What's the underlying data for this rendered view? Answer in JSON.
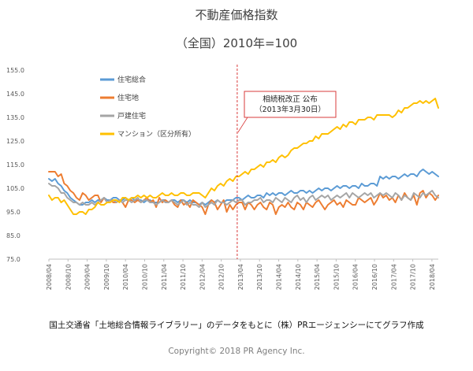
{
  "chart_data": {
    "type": "line",
    "title": "不動産価格指数",
    "subtitle": "（全国）2010年=100",
    "xlabel": "",
    "ylabel": "",
    "ylim": [
      75,
      155
    ],
    "yticks": [
      "155.0",
      "145.0",
      "135.0",
      "125.0",
      "115.0",
      "105.0",
      "95.0",
      "85.0",
      "75.0"
    ],
    "xticks": [
      "2008/04",
      "2008/10",
      "2009/04",
      "2009/10",
      "2010/04",
      "2010/10",
      "2011/04",
      "2011/10",
      "2012/04",
      "2012/10",
      "2013/04",
      "2013/10",
      "2014/04",
      "2014/10",
      "2015/04",
      "2015/10",
      "2016/04",
      "2016/10",
      "2017/04",
      "2017/10",
      "2018/04"
    ],
    "x_start": "2008/04",
    "x_end": "2018/06",
    "legend_position": "top-left",
    "grid": false,
    "series": [
      {
        "name": "住宅総合",
        "color": "#5B9BD5",
        "values": [
          109,
          108,
          109,
          107,
          106,
          104,
          103,
          101,
          100,
          99,
          98,
          98,
          99,
          99,
          100,
          99,
          100,
          100,
          101,
          100,
          100,
          101,
          101,
          100,
          100,
          101,
          100,
          101,
          100,
          100,
          100,
          99,
          100,
          100,
          99,
          99,
          99,
          100,
          100,
          99,
          100,
          100,
          99,
          100,
          100,
          99,
          100,
          99,
          99,
          98,
          99,
          98,
          99,
          100,
          99,
          100,
          99,
          99,
          100,
          100,
          100,
          101,
          101,
          100,
          101,
          102,
          101,
          101,
          102,
          102,
          101,
          103,
          102,
          103,
          102,
          103,
          103,
          102,
          103,
          104,
          103,
          103,
          104,
          104,
          103,
          104,
          103,
          104,
          105,
          104,
          105,
          105,
          104,
          105,
          106,
          105,
          106,
          106,
          105,
          106,
          106,
          105,
          107,
          106,
          106,
          107,
          107,
          106,
          110,
          109,
          110,
          109,
          110,
          110,
          109,
          110,
          111,
          110,
          111,
          111,
          110,
          112,
          113,
          112,
          111,
          112,
          111,
          110
        ]
      },
      {
        "name": "住宅地",
        "color": "#ED7D31",
        "values": [
          112,
          112,
          112,
          110,
          111,
          107,
          106,
          104,
          103,
          101,
          100,
          103,
          102,
          100,
          101,
          102,
          102,
          99,
          101,
          99,
          100,
          99,
          99,
          100,
          99,
          97,
          100,
          100,
          99,
          100,
          99,
          100,
          101,
          99,
          100,
          97,
          101,
          99,
          100,
          99,
          100,
          98,
          97,
          100,
          98,
          99,
          97,
          100,
          99,
          98,
          97,
          94,
          98,
          100,
          99,
          96,
          98,
          100,
          95,
          98,
          96,
          98,
          99,
          99,
          96,
          99,
          98,
          96,
          98,
          99,
          97,
          96,
          99,
          98,
          94,
          97,
          98,
          97,
          99,
          97,
          96,
          99,
          98,
          96,
          99,
          98,
          97,
          99,
          100,
          98,
          96,
          98,
          99,
          100,
          98,
          99,
          97,
          100,
          99,
          98,
          98,
          101,
          100,
          99,
          100,
          101,
          98,
          100,
          103,
          101,
          102,
          100,
          101,
          99,
          102,
          100,
          103,
          101,
          100,
          102,
          98,
          103,
          104,
          101,
          103,
          102,
          100,
          102
        ]
      },
      {
        "name": "戸建住宅",
        "color": "#A5A5A5",
        "values": [
          107,
          106,
          106,
          105,
          103,
          103,
          101,
          100,
          99,
          99,
          98,
          99,
          98,
          98,
          99,
          98,
          99,
          100,
          101,
          99,
          100,
          100,
          99,
          100,
          99,
          100,
          100,
          99,
          100,
          101,
          99,
          100,
          100,
          99,
          99,
          98,
          99,
          100,
          99,
          99,
          100,
          99,
          98,
          99,
          100,
          98,
          99,
          98,
          98,
          97,
          99,
          97,
          98,
          99,
          98,
          100,
          99,
          99,
          98,
          99,
          100,
          99,
          100,
          100,
          98,
          99,
          99,
          100,
          100,
          101,
          99,
          100,
          100,
          99,
          101,
          100,
          99,
          101,
          100,
          99,
          101,
          102,
          100,
          101,
          99,
          101,
          102,
          100,
          101,
          102,
          101,
          102,
          100,
          101,
          102,
          101,
          102,
          103,
          101,
          103,
          102,
          101,
          102,
          103,
          102,
          103,
          101,
          102,
          103,
          102,
          103,
          102,
          101,
          103,
          102,
          100,
          102,
          101,
          100,
          103,
          102,
          101,
          103,
          102,
          103,
          104,
          102,
          101
        ]
      },
      {
        "name": "マンション（区分所有）",
        "color": "#FFC000",
        "values": [
          102,
          100,
          101,
          101,
          99,
          100,
          98,
          96,
          94,
          94,
          95,
          95,
          94,
          96,
          96,
          97,
          99,
          98,
          98,
          99,
          99,
          100,
          100,
          99,
          101,
          101,
          100,
          101,
          101,
          102,
          101,
          102,
          101,
          102,
          101,
          101,
          102,
          103,
          102,
          102,
          103,
          102,
          102,
          103,
          103,
          102,
          102,
          103,
          103,
          103,
          102,
          101,
          103,
          105,
          104,
          106,
          107,
          106,
          108,
          109,
          108,
          110,
          110,
          111,
          112,
          111,
          113,
          113,
          114,
          115,
          114,
          116,
          116,
          117,
          116,
          118,
          119,
          118,
          119,
          121,
          122,
          122,
          123,
          124,
          124,
          125,
          125,
          127,
          126,
          128,
          128,
          128,
          129,
          130,
          131,
          130,
          132,
          131,
          133,
          133,
          132,
          134,
          134,
          134,
          135,
          135,
          134,
          136,
          136,
          136,
          136,
          136,
          135,
          136,
          138,
          137,
          139,
          139,
          140,
          141,
          141,
          142,
          141,
          142,
          141,
          142,
          143,
          139
        ]
      }
    ],
    "annotation": {
      "title": "相続税改正 公布",
      "date": "（2013年3月30日）",
      "x": "2013/03"
    },
    "source_note": "国土交通省「土地総合情報ライブラリー」のデータをもとに（株）PRエージェンシーにてグラフ作成",
    "copyright": "Copyright© 2018 PR Agency Inc."
  }
}
